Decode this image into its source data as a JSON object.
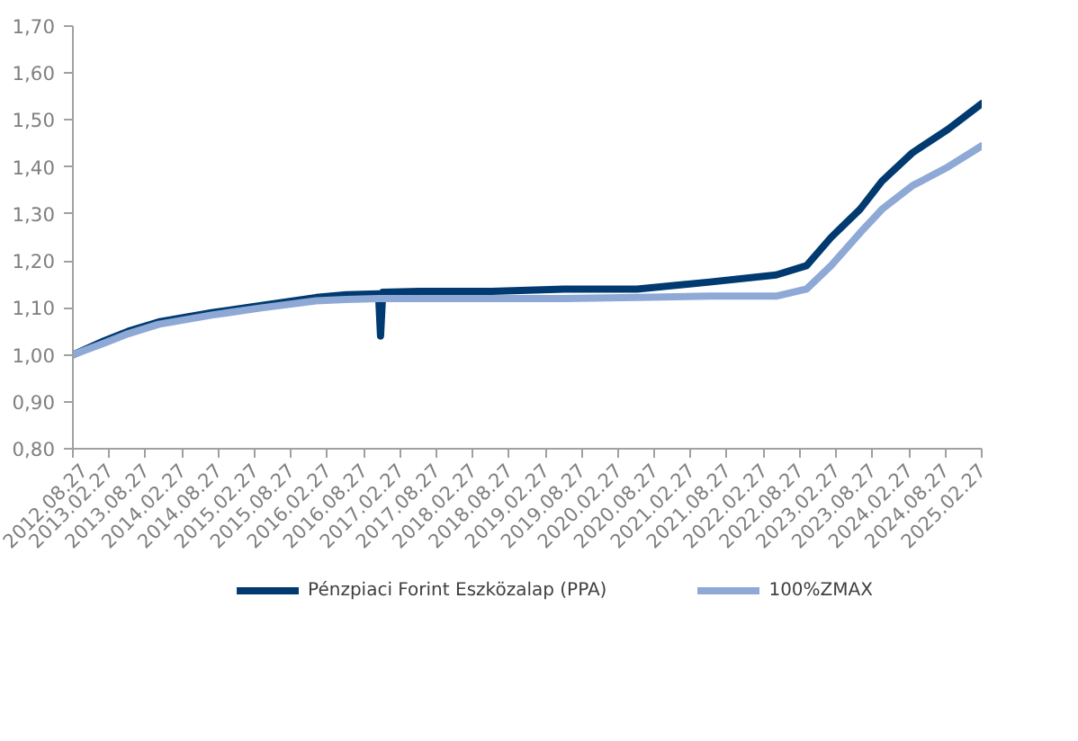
{
  "chart_data": {
    "type": "line",
    "x": [
      "2012-08-27",
      "2013-02-01",
      "2013-06-01",
      "2013-11-01",
      "2014-08-01",
      "2015-04-01",
      "2016-01-01",
      "2016-06-01",
      "2016-11-10",
      "2016-11-20",
      "2016-12-01",
      "2017-06-01",
      "2018-06-01",
      "2019-06-01",
      "2020-06-01",
      "2021-06-01",
      "2022-05-01",
      "2022-10-01",
      "2023-02-01",
      "2023-06-27",
      "2023-10-15",
      "2024-03-15",
      "2024-09-10",
      "2025-02-27"
    ],
    "series": [
      {
        "name": "Pénzpiaci Forint Eszközalap (PPA)",
        "color": "#003a70",
        "values": [
          1.0,
          1.03,
          1.05,
          1.07,
          1.09,
          1.105,
          1.122,
          1.128,
          1.13,
          1.04,
          1.133,
          1.135,
          1.135,
          1.14,
          1.14,
          1.155,
          1.17,
          1.19,
          1.25,
          1.31,
          1.37,
          1.43,
          1.48,
          1.535
        ]
      },
      {
        "name": "100%ZMAX",
        "color": "#8ea9d5",
        "values": [
          1.0,
          1.025,
          1.045,
          1.065,
          1.085,
          1.1,
          1.115,
          1.118,
          1.12,
          1.12,
          1.12,
          1.12,
          1.12,
          1.12,
          1.122,
          1.125,
          1.125,
          1.14,
          1.19,
          1.26,
          1.31,
          1.36,
          1.4,
          1.445
        ]
      }
    ],
    "ylim": [
      0.8,
      1.7
    ],
    "yticks": [
      {
        "value": 0.8,
        "label": "0,80"
      },
      {
        "value": 0.9,
        "label": "0,90"
      },
      {
        "value": 1.0,
        "label": "1,00"
      },
      {
        "value": 1.1,
        "label": "1,10"
      },
      {
        "value": 1.2,
        "label": "1,20"
      },
      {
        "value": 1.3,
        "label": "1,30"
      },
      {
        "value": 1.4,
        "label": "1,40"
      },
      {
        "value": 1.5,
        "label": "1,50"
      },
      {
        "value": 1.6,
        "label": "1,60"
      },
      {
        "value": 1.7,
        "label": "1,70"
      }
    ],
    "xlim": [
      "2012-08-27",
      "2025-02-27"
    ],
    "xticks": [
      {
        "value": "2012-08-27",
        "label": "2012.08.27"
      },
      {
        "value": "2013-02-27",
        "label": "2013.02.27"
      },
      {
        "value": "2013-08-27",
        "label": "2013.08.27"
      },
      {
        "value": "2014-02-27",
        "label": "2014.02.27"
      },
      {
        "value": "2014-08-27",
        "label": "2014.08.27"
      },
      {
        "value": "2015-02-27",
        "label": "2015.02.27"
      },
      {
        "value": "2015-08-27",
        "label": "2015.08.27"
      },
      {
        "value": "2016-02-27",
        "label": "2016.02.27"
      },
      {
        "value": "2016-08-27",
        "label": "2016.08.27"
      },
      {
        "value": "2017-02-27",
        "label": "2017.02.27"
      },
      {
        "value": "2017-08-27",
        "label": "2017.08.27"
      },
      {
        "value": "2018-02-27",
        "label": "2018.02.27"
      },
      {
        "value": "2018-08-27",
        "label": "2018.08.27"
      },
      {
        "value": "2019-02-27",
        "label": "2019.02.27"
      },
      {
        "value": "2019-08-27",
        "label": "2019.08.27"
      },
      {
        "value": "2020-02-27",
        "label": "2020.02.27"
      },
      {
        "value": "2020-08-27",
        "label": "2020.08.27"
      },
      {
        "value": "2021-02-27",
        "label": "2021.02.27"
      },
      {
        "value": "2021-08-27",
        "label": "2021.08.27"
      },
      {
        "value": "2022-02-27",
        "label": "2022.02.27"
      },
      {
        "value": "2022-08-27",
        "label": "2022.08.27"
      },
      {
        "value": "2023-02-27",
        "label": "2023.02.27"
      },
      {
        "value": "2023-08-27",
        "label": "2023.08.27"
      },
      {
        "value": "2024-02-27",
        "label": "2024.02.27"
      },
      {
        "value": "2024-08-27",
        "label": "2024.08.27"
      },
      {
        "value": "2025-02-27",
        "label": "2025.02.27"
      }
    ],
    "grid": false,
    "legend": "bottom",
    "marker": "none",
    "line_style": "solid"
  }
}
